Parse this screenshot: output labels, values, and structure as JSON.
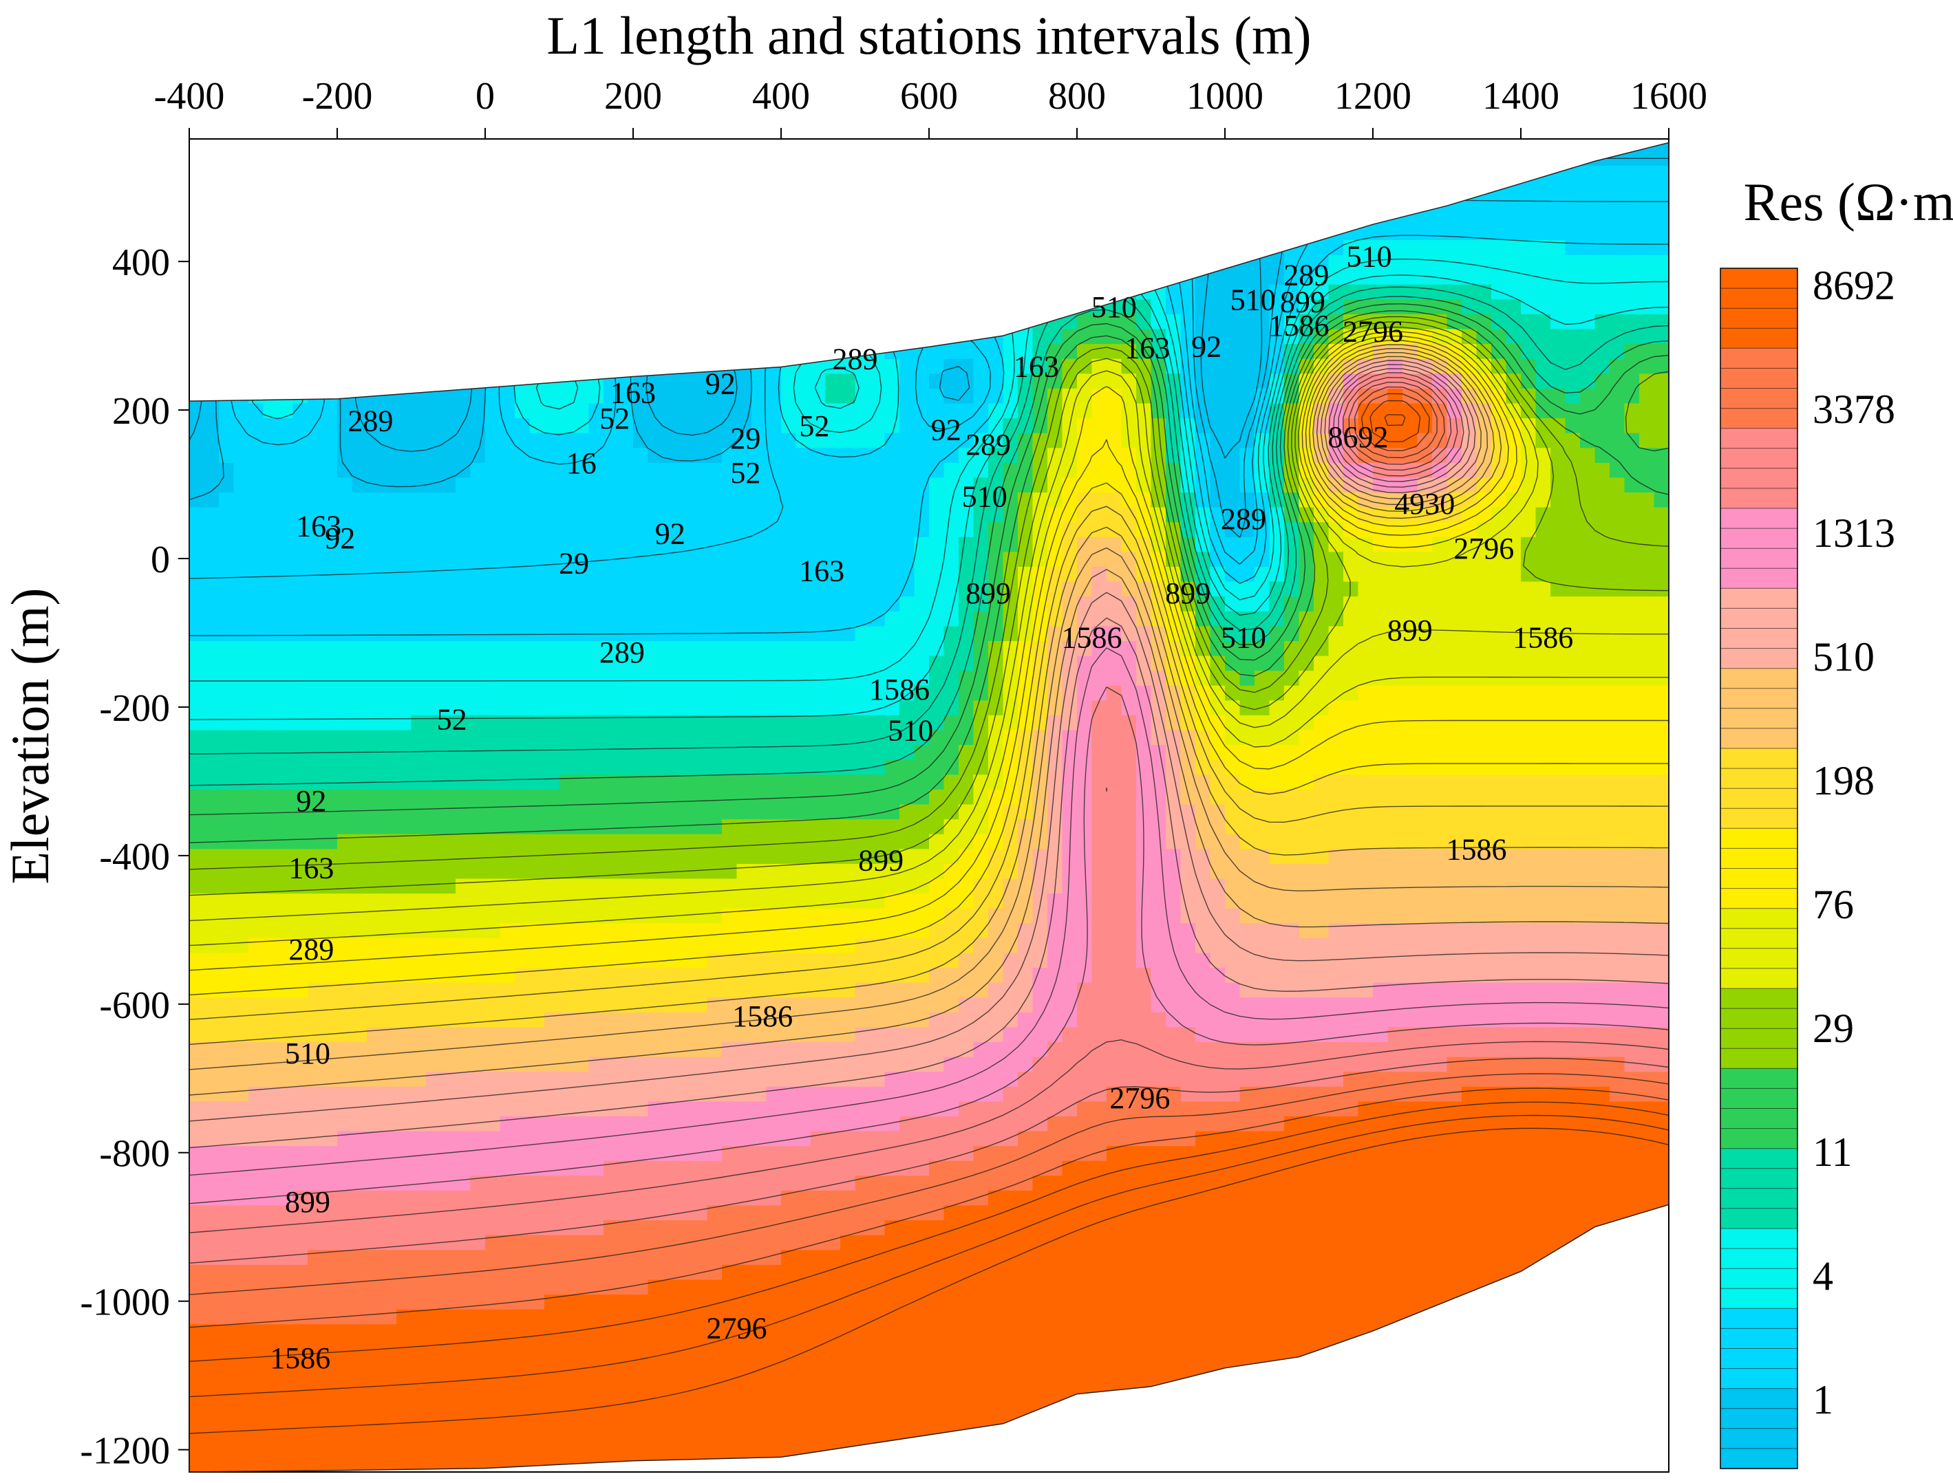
{
  "chart_data": {
    "type": "heatmap",
    "title": "L1 length and stations intervals (m)",
    "xlabel": "",
    "ylabel": "Elevation (m)",
    "xlim": [
      -400,
      1600
    ],
    "ylim": [
      -1230,
      565
    ],
    "x_ticks": [
      "-400",
      "-200",
      "0",
      "200",
      "400",
      "600",
      "800",
      "1000",
      "1200",
      "1400",
      "1600"
    ],
    "y_ticks": [
      "400",
      "200",
      "0",
      "-200",
      "-400",
      "-600",
      "-800",
      "-1000",
      "-1200"
    ],
    "colorbar": {
      "title": "Res (Ω·m)",
      "labels": [
        "8692",
        "3378",
        "1313",
        "510",
        "198",
        "76",
        "29",
        "11",
        "4",
        "1"
      ],
      "colors": [
        "#00c4f2",
        "#00d8ff",
        "#00f6ee",
        "#00dca8",
        "#2ecf58",
        "#93d400",
        "#e4f000",
        "#ffee00",
        "#ffdf2a",
        "#ffc66c",
        "#ffb0a0",
        "#ff92c4",
        "#ff8a8a",
        "#ff7a4a",
        "#ff6600"
      ]
    },
    "contour_labels": [
      {
        "x": -155,
        "y": 172,
        "label": "289"
      },
      {
        "x": 175,
        "y": 175,
        "label": "52"
      },
      {
        "x": 200,
        "y": 210,
        "label": "163"
      },
      {
        "x": 500,
        "y": 255,
        "label": "289"
      },
      {
        "x": 745,
        "y": 245,
        "label": "163"
      },
      {
        "x": 1195,
        "y": 393,
        "label": "510"
      },
      {
        "x": 1110,
        "y": 368,
        "label": "289"
      },
      {
        "x": 1038,
        "y": 335,
        "label": "510"
      },
      {
        "x": 1105,
        "y": 332,
        "label": "899"
      },
      {
        "x": 1100,
        "y": 300,
        "label": "1586"
      },
      {
        "x": 1200,
        "y": 292,
        "label": "2796"
      },
      {
        "x": 850,
        "y": 325,
        "label": "510"
      },
      {
        "x": 895,
        "y": 270,
        "label": "163"
      },
      {
        "x": 975,
        "y": 272,
        "label": "92"
      },
      {
        "x": 318,
        "y": 222,
        "label": "92"
      },
      {
        "x": 445,
        "y": 165,
        "label": "52"
      },
      {
        "x": 352,
        "y": 148,
        "label": "29"
      },
      {
        "x": 352,
        "y": 102,
        "label": "52"
      },
      {
        "x": 623,
        "y": 160,
        "label": "92"
      },
      {
        "x": 680,
        "y": 140,
        "label": "289"
      },
      {
        "x": 130,
        "y": 115,
        "label": "16"
      },
      {
        "x": -225,
        "y": 30,
        "label": "163"
      },
      {
        "x": -196,
        "y": 14,
        "label": "92"
      },
      {
        "x": 120,
        "y": -20,
        "label": "29"
      },
      {
        "x": 250,
        "y": 20,
        "label": "92"
      },
      {
        "x": 455,
        "y": -30,
        "label": "163"
      },
      {
        "x": 675,
        "y": 70,
        "label": "510"
      },
      {
        "x": 1180,
        "y": 150,
        "label": "8692"
      },
      {
        "x": 1270,
        "y": 60,
        "label": "4930"
      },
      {
        "x": 1350,
        "y": 0,
        "label": "2796"
      },
      {
        "x": 1025,
        "y": 40,
        "label": "289"
      },
      {
        "x": 950,
        "y": -60,
        "label": "899"
      },
      {
        "x": 1025,
        "y": -120,
        "label": "510"
      },
      {
        "x": 1250,
        "y": -110,
        "label": "899"
      },
      {
        "x": 1430,
        "y": -120,
        "label": "1586"
      },
      {
        "x": 680,
        "y": -60,
        "label": "899"
      },
      {
        "x": 820,
        "y": -120,
        "label": "1586"
      },
      {
        "x": 185,
        "y": -140,
        "label": "289"
      },
      {
        "x": -45,
        "y": -230,
        "label": "52"
      },
      {
        "x": 560,
        "y": -190,
        "label": "1586"
      },
      {
        "x": -235,
        "y": -340,
        "label": "92"
      },
      {
        "x": 575,
        "y": -245,
        "label": "510"
      },
      {
        "x": -235,
        "y": -430,
        "label": "163"
      },
      {
        "x": 535,
        "y": -420,
        "label": "899"
      },
      {
        "x": 1340,
        "y": -405,
        "label": "1586"
      },
      {
        "x": -235,
        "y": -540,
        "label": "289"
      },
      {
        "x": 375,
        "y": -630,
        "label": "1586"
      },
      {
        "x": -240,
        "y": -680,
        "label": "510"
      },
      {
        "x": 885,
        "y": -740,
        "label": "2796"
      },
      {
        "x": -240,
        "y": -880,
        "label": "899"
      },
      {
        "x": -250,
        "y": -1090,
        "label": "1586"
      },
      {
        "x": 340,
        "y": -1050,
        "label": "2796"
      }
    ]
  }
}
